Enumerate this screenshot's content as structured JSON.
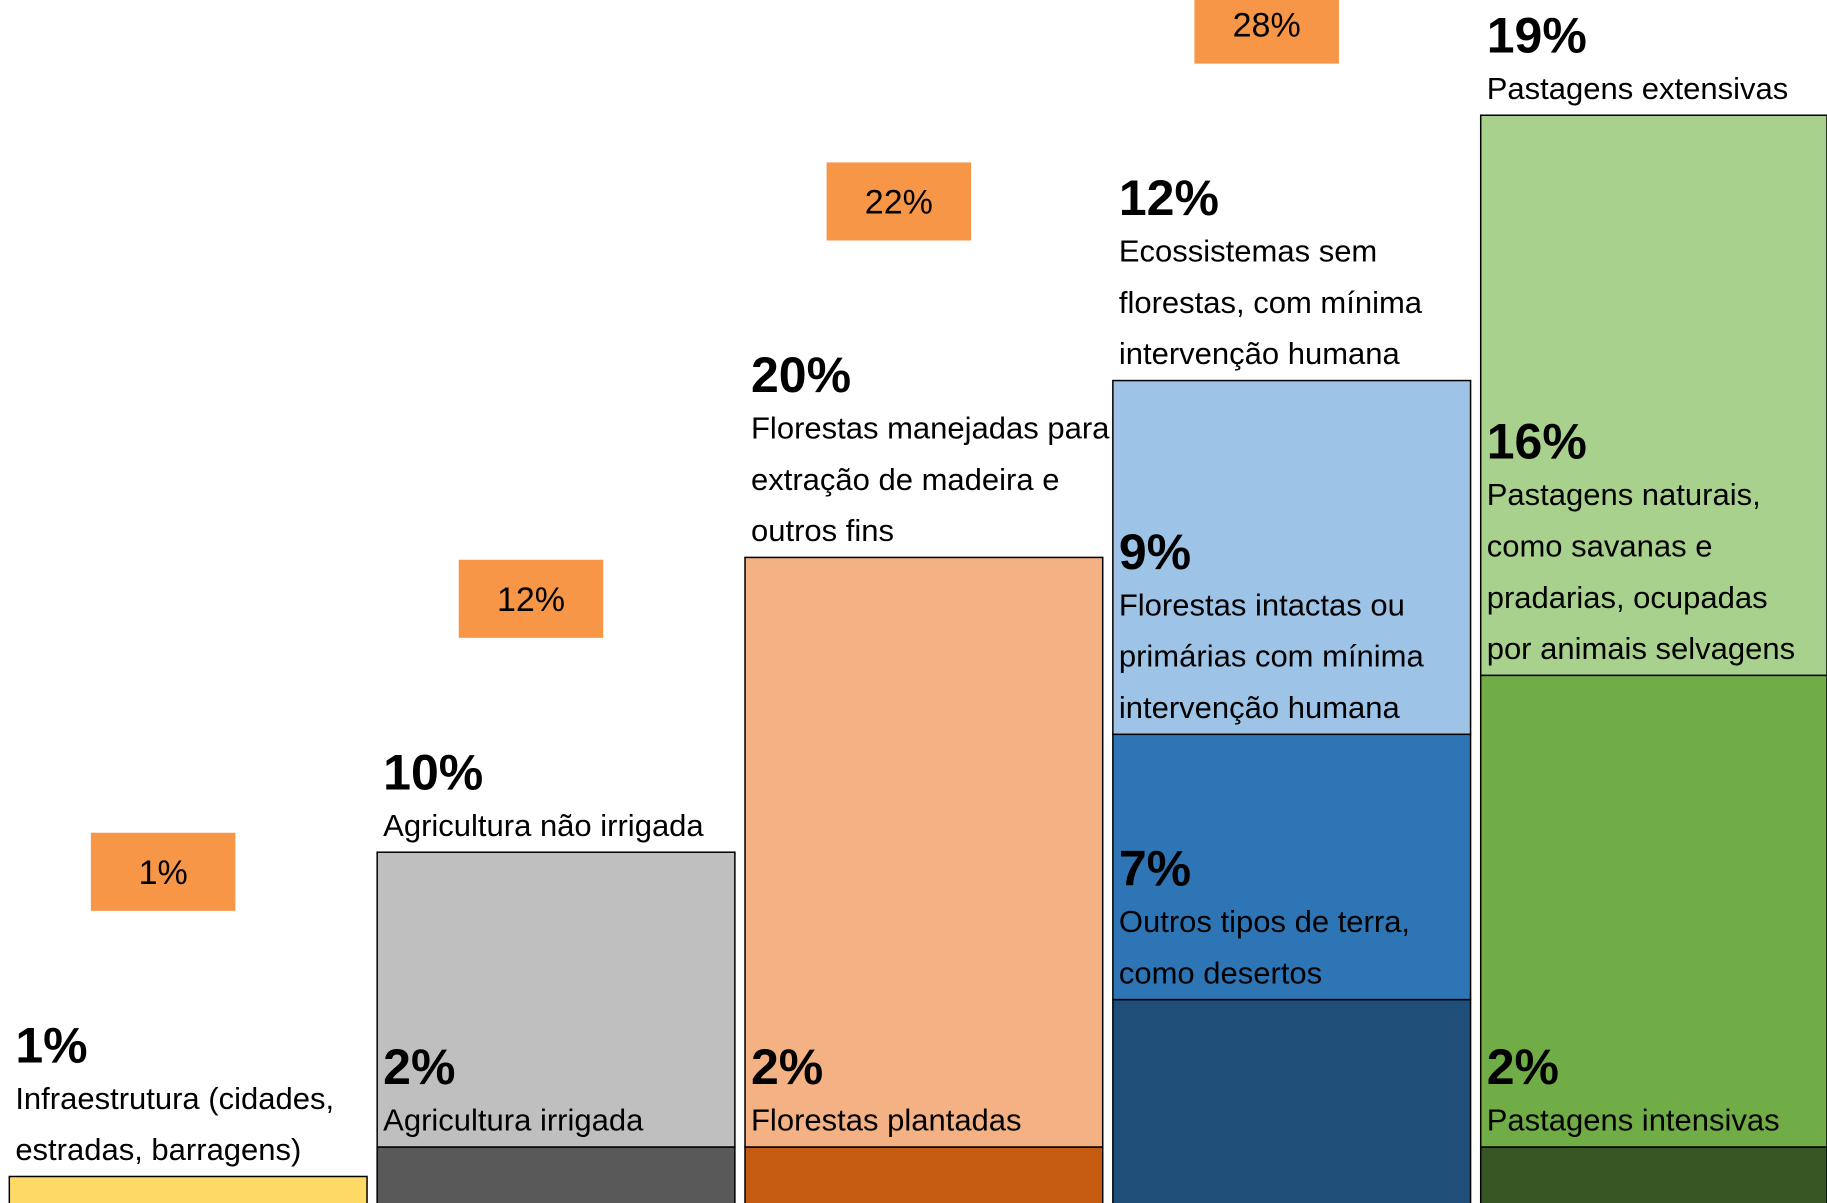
{
  "chart_data": {
    "type": "stacked_bar",
    "columns": [
      {
        "values": [
          1
        ],
        "value_labels": [
          "1%"
        ],
        "colors": [
          "#ffd966"
        ],
        "labels": [
          [
            "Infraestrutura (cidades,",
            "estradas, barragens)"
          ]
        ],
        "total": 1,
        "total_label": "1%"
      },
      {
        "values": [
          2,
          10
        ],
        "value_labels": [
          "2%",
          "10%"
        ],
        "colors": [
          "#595959",
          "#bfbfbf"
        ],
        "labels": [
          [
            "Agricultura irrigada"
          ],
          [
            "Agricultura não irrigada"
          ]
        ],
        "total": 12,
        "total_label": "12%"
      },
      {
        "values": [
          2,
          20
        ],
        "value_labels": [
          "2%",
          "20%"
        ],
        "colors": [
          "#c55a11",
          "#f4b183"
        ],
        "labels": [
          [
            "Florestas plantadas"
          ],
          [
            "Florestas manejadas para",
            "extração de madeira e",
            "outros fins"
          ]
        ],
        "total": 22,
        "total_label": "22%"
      },
      {
        "values": [
          7,
          9,
          12
        ],
        "value_labels": [
          "7%",
          "9%",
          "12%"
        ],
        "colors": [
          "#1f4e79",
          "#2e75b6",
          "#9dc3e6"
        ],
        "labels": [
          [
            "Outros tipos de terra,",
            "como desertos"
          ],
          [
            "Florestas intactas ou",
            "primárias com mínima",
            "intervenção humana"
          ],
          [
            "Ecossistemas sem",
            "florestas, com mínima",
            "intervenção humana"
          ]
        ],
        "total": 28,
        "total_label": "28%"
      },
      {
        "values": [
          2,
          16,
          19
        ],
        "value_labels": [
          "2%",
          "16%",
          "19%"
        ],
        "colors": [
          "#375623",
          "#70ad47",
          "#a9d18e"
        ],
        "labels": [
          [
            "Pastagens intensivas"
          ],
          [
            "Pastagens naturais,",
            "como savanas e",
            "pradarias, ocupadas",
            "por animais selvagens"
          ],
          [
            "Pastagens extensivas"
          ]
        ],
        "total": null,
        "total_label": null
      }
    ],
    "total_box_color": "#f79646"
  }
}
